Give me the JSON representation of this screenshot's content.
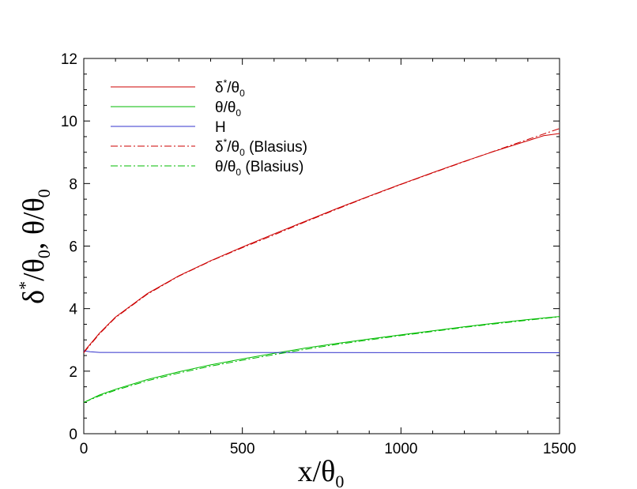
{
  "chart_data": {
    "type": "line",
    "xlabel": {
      "main": "x/θ",
      "sub": "0"
    },
    "ylabel": {
      "main": "δ",
      "sup": "*",
      "mid": "/θ",
      "sub": "0",
      "sep": ",  θ/θ",
      "sub2": "0"
    },
    "xlim": [
      0,
      1500
    ],
    "ylim": [
      0,
      12
    ],
    "xticks": [
      0,
      500,
      1000,
      1500
    ],
    "xtick_labels": [
      "0",
      "500",
      "1000",
      "1500"
    ],
    "yticks": [
      0,
      2,
      4,
      6,
      8,
      10,
      12
    ],
    "ytick_labels": [
      "0",
      "2",
      "4",
      "6",
      "8",
      "10",
      "12"
    ],
    "grid": false,
    "legend_position": "top-left",
    "series": [
      {
        "name": "δ*/θ0",
        "legend": {
          "main": "δ",
          "sup": "*",
          "mid": "/θ",
          "sub": "0",
          "tail": ""
        },
        "color": "#cc0000",
        "style": "solid",
        "x": [
          0,
          50,
          100,
          200,
          300,
          400,
          500,
          600,
          700,
          800,
          900,
          1000,
          1100,
          1200,
          1300,
          1400,
          1450,
          1500
        ],
        "y": [
          2.62,
          3.22,
          3.73,
          4.48,
          5.05,
          5.53,
          5.97,
          6.39,
          6.8,
          7.21,
          7.6,
          7.98,
          8.35,
          8.71,
          9.05,
          9.37,
          9.53,
          9.6
        ]
      },
      {
        "name": "θ/θ0",
        "legend": {
          "main": "θ/θ",
          "sup": "",
          "mid": "",
          "sub": "0",
          "tail": ""
        },
        "color": "#00bb00",
        "style": "solid",
        "x": [
          0,
          50,
          100,
          200,
          300,
          400,
          500,
          600,
          700,
          800,
          900,
          1000,
          1100,
          1200,
          1300,
          1400,
          1500
        ],
        "y": [
          1.0,
          1.24,
          1.42,
          1.73,
          1.98,
          2.2,
          2.39,
          2.57,
          2.74,
          2.89,
          3.03,
          3.16,
          3.29,
          3.42,
          3.54,
          3.65,
          3.75
        ]
      },
      {
        "name": "H",
        "legend": {
          "main": "H",
          "sup": "",
          "mid": "",
          "sub": "",
          "tail": ""
        },
        "color": "#3333cc",
        "style": "solid",
        "x": [
          0,
          20,
          50,
          1500
        ],
        "y": [
          2.65,
          2.62,
          2.6,
          2.59
        ]
      },
      {
        "name": "δ*/θ0 (Blasius)",
        "legend": {
          "main": "δ",
          "sup": "*",
          "mid": "/θ",
          "sub": "0",
          "tail": " (Blasius)"
        },
        "color": "#cc0000",
        "style": "dashdot",
        "x": [
          0,
          50,
          100,
          200,
          300,
          400,
          500,
          600,
          700,
          800,
          900,
          1000,
          1100,
          1200,
          1300,
          1400,
          1500
        ],
        "y": [
          2.59,
          3.2,
          3.71,
          4.46,
          5.04,
          5.52,
          5.95,
          6.36,
          6.78,
          7.19,
          7.59,
          7.97,
          8.34,
          8.7,
          9.06,
          9.41,
          9.76
        ]
      },
      {
        "name": "θ/θ0 (Blasius)",
        "legend": {
          "main": "θ/θ",
          "sup": "",
          "mid": "",
          "sub": "0",
          "tail": " (Blasius)"
        },
        "color": "#00bb00",
        "style": "dashdot",
        "x": [
          0,
          50,
          100,
          200,
          300,
          400,
          500,
          600,
          700,
          800,
          900,
          1000,
          1100,
          1200,
          1300,
          1400,
          1500
        ],
        "y": [
          1.0,
          1.21,
          1.39,
          1.69,
          1.94,
          2.16,
          2.35,
          2.53,
          2.7,
          2.86,
          3.0,
          3.14,
          3.27,
          3.4,
          3.52,
          3.63,
          3.74
        ]
      }
    ]
  }
}
